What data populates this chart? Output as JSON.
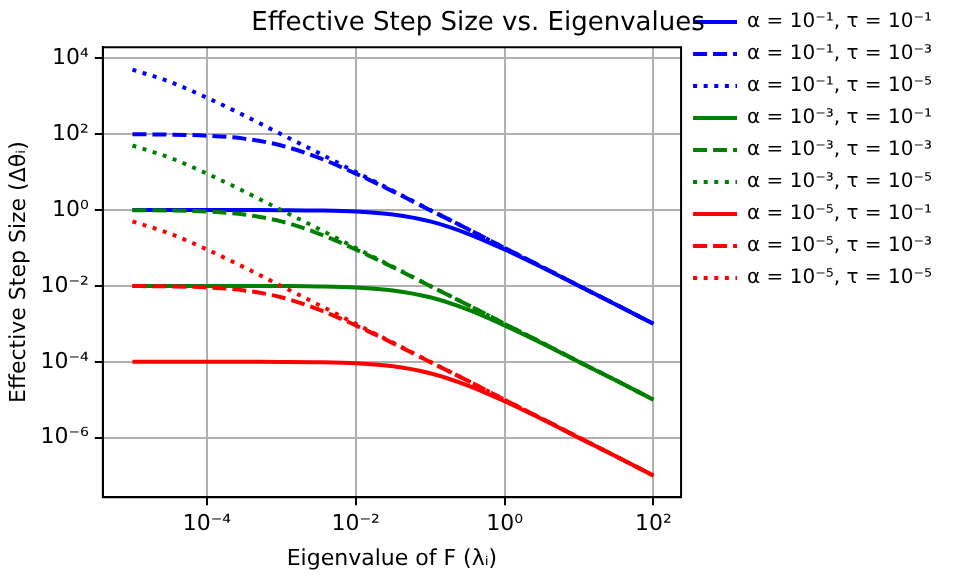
{
  "chart_data": {
    "type": "line",
    "title": "Effective Step Size vs. Eigenvalues",
    "xlabel": "Eigenvalue of F (λᵢ)",
    "ylabel": "Effective Step Size (Δθᵢ)",
    "log": "xy",
    "grid": true,
    "legend": "right",
    "xlim": [
      4e-06,
      235
    ],
    "ylim": [
      2.7e-08,
      19500
    ],
    "xticks": [
      {
        "value": 0.0001,
        "label": "10⁻⁴"
      },
      {
        "value": 0.01,
        "label": "10⁻²"
      },
      {
        "value": 1,
        "label": "10⁰"
      },
      {
        "value": 100,
        "label": "10²"
      }
    ],
    "yticks": [
      {
        "value": 1e-06,
        "label": "10⁻⁶"
      },
      {
        "value": 0.0001,
        "label": "10⁻⁴"
      },
      {
        "value": 0.01,
        "label": "10⁻²"
      },
      {
        "value": 1,
        "label": "10⁰"
      },
      {
        "value": 100,
        "label": "10²"
      },
      {
        "value": 10000,
        "label": "10⁴"
      }
    ],
    "x": [
      1e-05,
      3.16e-05,
      0.0001,
      0.000316,
      0.001,
      0.00316,
      0.01,
      0.0316,
      0.1,
      0.316,
      1,
      3.16,
      10,
      31.6,
      100
    ],
    "series": [
      {
        "name": "α = 10⁻¹, τ = 10⁻¹",
        "color": "#0000ff",
        "line_style": "solid",
        "values": [
          1,
          1,
          1,
          1,
          0.99,
          0.97,
          0.91,
          0.76,
          0.5,
          0.24,
          0.091,
          0.031,
          0.0099,
          0.0032,
          0.001
        ]
      },
      {
        "name": "α = 10⁻¹, τ = 10⁻³",
        "color": "#0000ff",
        "line_style": "dashed",
        "values": [
          99,
          97,
          91,
          76,
          50,
          24,
          9.1,
          3.1,
          0.99,
          0.32,
          0.1,
          0.032,
          0.01,
          0.0032,
          0.001
        ]
      },
      {
        "name": "α = 10⁻¹, τ = 10⁻⁵",
        "color": "#0000ff",
        "line_style": "dotted",
        "values": [
          5000,
          2400,
          910,
          310,
          99,
          32,
          10,
          3.2,
          1,
          0.32,
          0.1,
          0.032,
          0.01,
          0.0032,
          0.001
        ]
      },
      {
        "name": "α = 10⁻³, τ = 10⁻¹",
        "color": "#008000",
        "line_style": "solid",
        "values": [
          0.01,
          0.01,
          0.01,
          0.01,
          0.0099,
          0.0097,
          0.0091,
          0.0076,
          0.005,
          0.0024,
          0.00091,
          0.00031,
          9.9e-05,
          3.2e-05,
          1e-05
        ]
      },
      {
        "name": "α = 10⁻³, τ = 10⁻³",
        "color": "#008000",
        "line_style": "dashed",
        "values": [
          0.99,
          0.97,
          0.91,
          0.76,
          0.5,
          0.24,
          0.091,
          0.031,
          0.0099,
          0.0032,
          0.001,
          0.00032,
          0.0001,
          3.2e-05,
          1e-05
        ]
      },
      {
        "name": "α = 10⁻³, τ = 10⁻⁵",
        "color": "#008000",
        "line_style": "dotted",
        "values": [
          50,
          24,
          9.1,
          3.1,
          0.99,
          0.32,
          0.1,
          0.032,
          0.01,
          0.0032,
          0.001,
          0.00032,
          0.0001,
          3.2e-05,
          1e-05
        ]
      },
      {
        "name": "α = 10⁻⁵, τ = 10⁻¹",
        "color": "#ff0000",
        "line_style": "solid",
        "values": [
          0.0001,
          0.0001,
          0.0001,
          0.0001,
          9.9e-05,
          9.7e-05,
          9.1e-05,
          7.6e-05,
          5e-05,
          2.4e-05,
          9.1e-06,
          3.1e-06,
          9.9e-07,
          3.2e-07,
          1e-07
        ]
      },
      {
        "name": "α = 10⁻⁵, τ = 10⁻³",
        "color": "#ff0000",
        "line_style": "dashed",
        "values": [
          0.0099,
          0.0097,
          0.0091,
          0.0076,
          0.005,
          0.0024,
          0.00091,
          0.00031,
          9.9e-05,
          3.2e-05,
          1e-05,
          3.2e-06,
          1e-06,
          3.2e-07,
          1e-07
        ]
      },
      {
        "name": "α = 10⁻⁵, τ = 10⁻⁵",
        "color": "#ff0000",
        "line_style": "dotted",
        "values": [
          0.5,
          0.24,
          0.091,
          0.031,
          0.0099,
          0.0032,
          0.001,
          0.00032,
          0.0001,
          3.2e-05,
          1e-05,
          3.2e-06,
          1e-06,
          3.2e-07,
          1e-07
        ]
      }
    ]
  }
}
